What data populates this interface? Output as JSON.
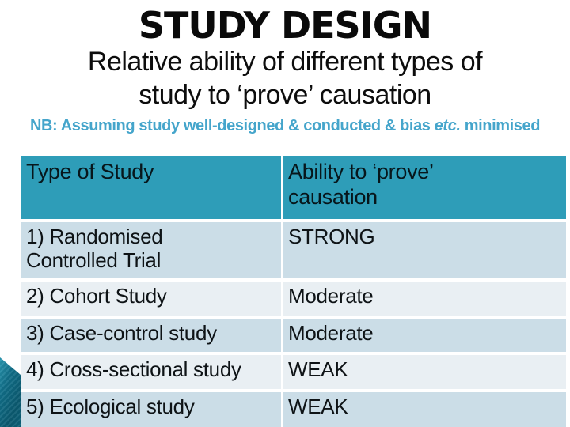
{
  "slide": {
    "title": "STUDY DESIGN",
    "subtitle_line1": "Relative ability of different types of",
    "subtitle_line2": "study to ‘prove’ causation",
    "note": {
      "prefix": "NB: Assuming study well-designed & conducted & bias ",
      "italic": "etc.",
      "suffix": " minimised"
    }
  },
  "table": {
    "headers": [
      "Type of Study",
      "Ability to ‘prove’\ncausation"
    ],
    "rows": [
      {
        "study": "1) Randomised\nControlled Trial",
        "ability": "STRONG"
      },
      {
        "study": "2) Cohort Study",
        "ability": "Moderate"
      },
      {
        "study": "3) Case-control study",
        "ability": "Moderate"
      },
      {
        "study": "4) Cross-sectional study",
        "ability": "WEAK"
      },
      {
        "study": "5) Ecological study",
        "ability": "WEAK"
      }
    ]
  },
  "colors": {
    "header_bg": "#2E9DB8",
    "row_dark": "#CBDDE7",
    "row_light": "#E9EFF3",
    "note_blue": "#45A5CB",
    "wedge_dark": "#0B5A70",
    "wedge_light": "#2D9CB6",
    "text": "#0D1217"
  }
}
